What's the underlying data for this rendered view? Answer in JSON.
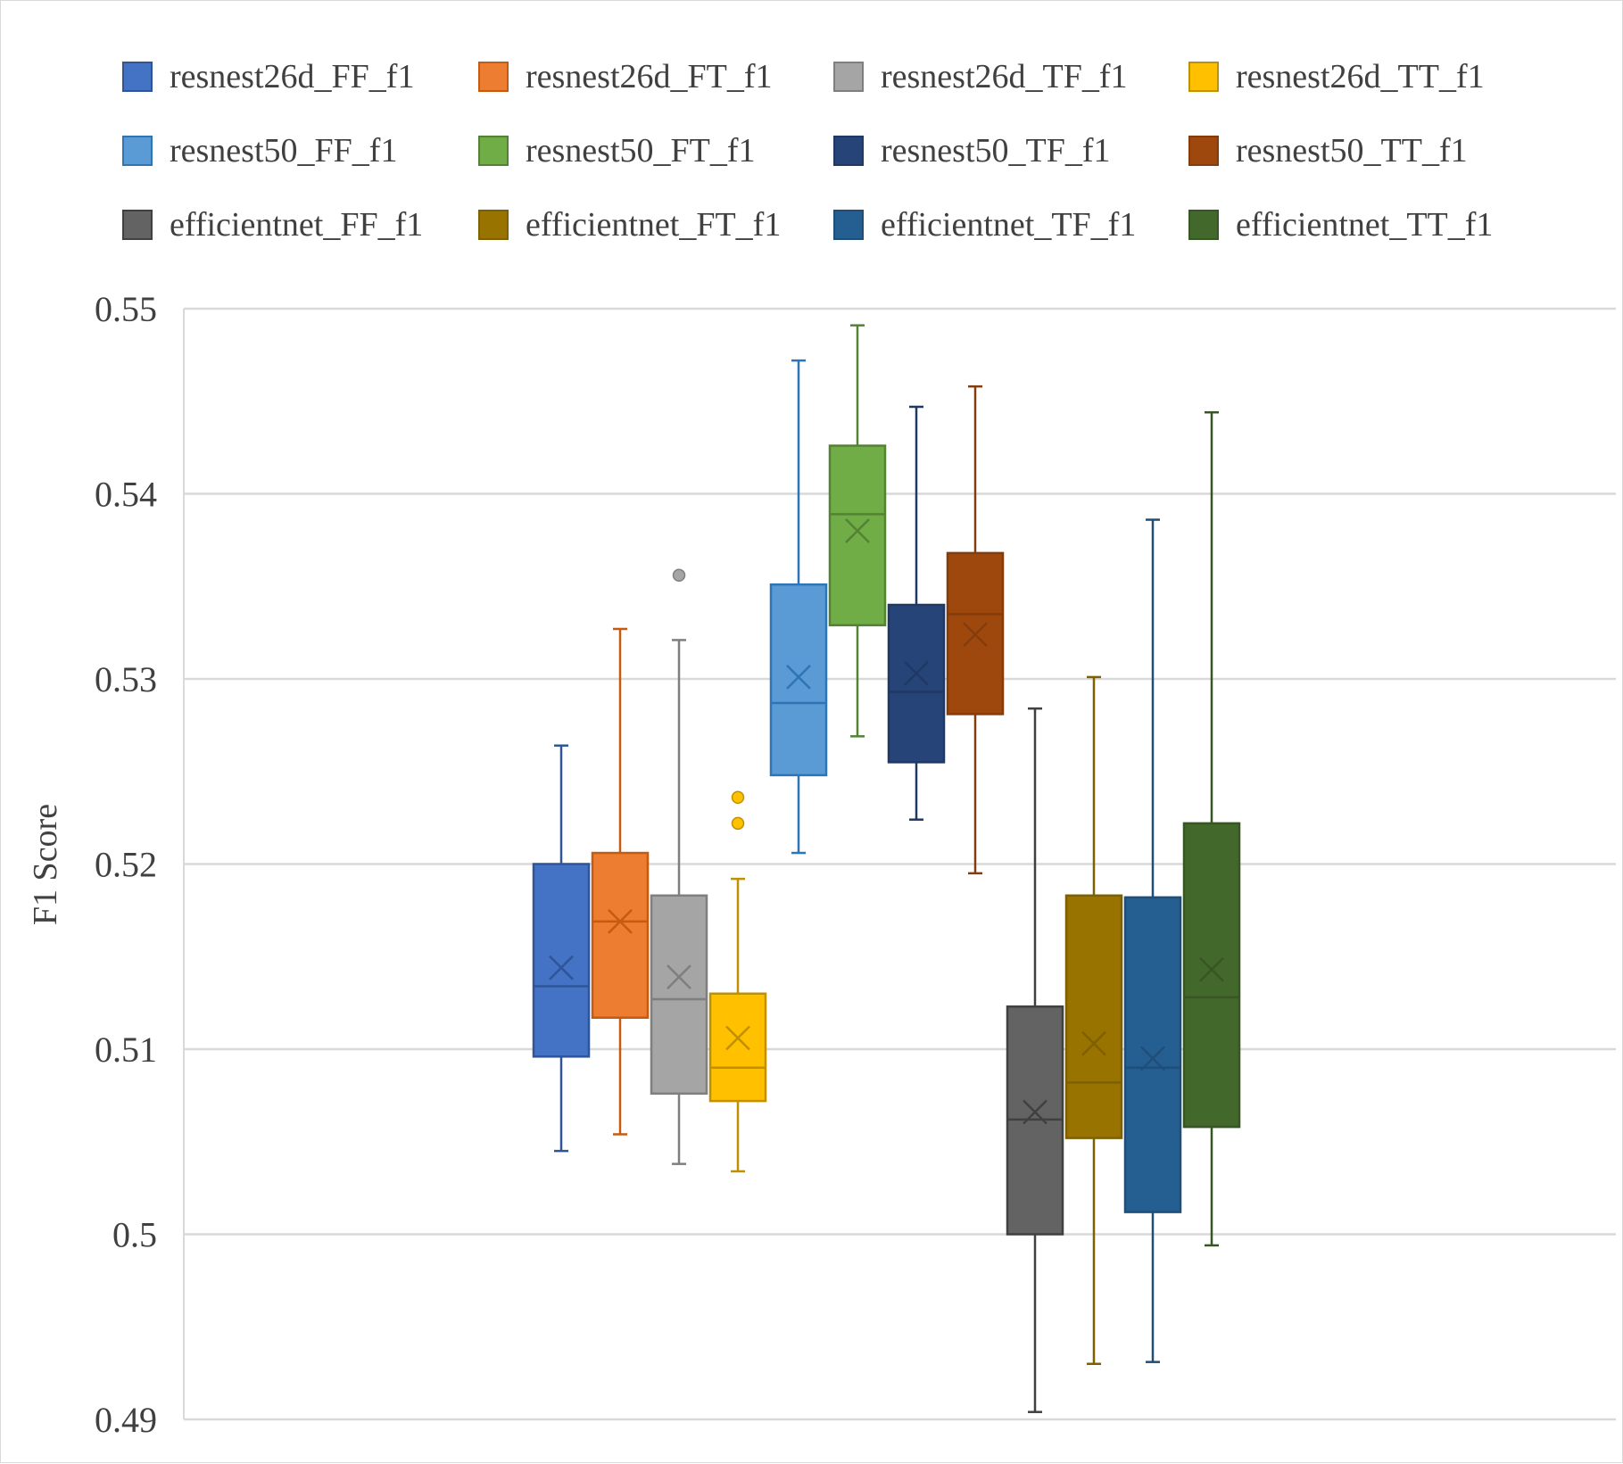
{
  "chart_data": {
    "type": "boxplot",
    "title": "",
    "xlabel": "",
    "ylabel": "F1 Score",
    "ylim": [
      0.49,
      0.55
    ],
    "yticks": [
      "0.49",
      "0.5",
      "0.51",
      "0.52",
      "0.53",
      "0.54",
      "0.55"
    ],
    "ytick_values": [
      0.49,
      0.5,
      0.51,
      0.52,
      0.53,
      0.54,
      0.55
    ],
    "grid": true,
    "legend_position": "top",
    "series": [
      {
        "name": "resnest26d_FF_f1",
        "color": "#4472C4",
        "stroke": "#2F5597",
        "min": 0.5045,
        "q1": 0.5096,
        "median": 0.5134,
        "mean": 0.5144,
        "q3": 0.52,
        "max": 0.5264,
        "outliers": []
      },
      {
        "name": "resnest26d_FT_f1",
        "color": "#ED7D31",
        "stroke": "#C55A11",
        "min": 0.5054,
        "q1": 0.5117,
        "median": 0.5169,
        "mean": 0.5169,
        "q3": 0.5206,
        "max": 0.5327,
        "outliers": []
      },
      {
        "name": "resnest26d_TF_f1",
        "color": "#A5A5A5",
        "stroke": "#7F7F7F",
        "min": 0.5038,
        "q1": 0.5076,
        "median": 0.5127,
        "mean": 0.5139,
        "q3": 0.5183,
        "max": 0.5321,
        "outliers": [
          0.5356
        ]
      },
      {
        "name": "resnest26d_TT_f1",
        "color": "#FFC000",
        "stroke": "#BF9000",
        "min": 0.5034,
        "q1": 0.5072,
        "median": 0.509,
        "mean": 0.5106,
        "q3": 0.513,
        "max": 0.5192,
        "outliers": [
          0.5222,
          0.5236
        ]
      },
      {
        "name": "resnest50_FF_f1",
        "color": "#5B9BD5",
        "stroke": "#2E75B6",
        "min": 0.5206,
        "q1": 0.5248,
        "median": 0.5287,
        "mean": 0.5301,
        "q3": 0.5351,
        "max": 0.5472,
        "outliers": []
      },
      {
        "name": "resnest50_FT_f1",
        "color": "#70AD47",
        "stroke": "#548235",
        "min": 0.5269,
        "q1": 0.5329,
        "median": 0.5389,
        "mean": 0.538,
        "q3": 0.5426,
        "max": 0.5491,
        "outliers": []
      },
      {
        "name": "resnest50_TF_f1",
        "color": "#264478",
        "stroke": "#1F3864",
        "min": 0.5224,
        "q1": 0.5255,
        "median": 0.5293,
        "mean": 0.5303,
        "q3": 0.534,
        "max": 0.5447,
        "outliers": []
      },
      {
        "name": "resnest50_TT_f1",
        "color": "#9E480E",
        "stroke": "#843C0C",
        "min": 0.5195,
        "q1": 0.5281,
        "median": 0.5335,
        "mean": 0.5324,
        "q3": 0.5368,
        "max": 0.5458,
        "outliers": []
      },
      {
        "name": "efficientnet_FF_f1",
        "color": "#636363",
        "stroke": "#404040",
        "min": 0.4904,
        "q1": 0.5,
        "median": 0.5062,
        "mean": 0.5066,
        "q3": 0.5123,
        "max": 0.5284,
        "outliers": []
      },
      {
        "name": "efficientnet_FT_f1",
        "color": "#997300",
        "stroke": "#7F6000",
        "min": 0.493,
        "q1": 0.5052,
        "median": 0.5082,
        "mean": 0.5103,
        "q3": 0.5183,
        "max": 0.5301,
        "outliers": []
      },
      {
        "name": "efficientnet_TF_f1",
        "color": "#255E91",
        "stroke": "#1F4E79",
        "min": 0.4931,
        "q1": 0.5012,
        "median": 0.509,
        "mean": 0.5095,
        "q3": 0.5182,
        "max": 0.5386,
        "outliers": []
      },
      {
        "name": "efficientnet_TT_f1",
        "color": "#43682B",
        "stroke": "#375623",
        "min": 0.4994,
        "q1": 0.5058,
        "median": 0.5128,
        "mean": 0.5143,
        "q3": 0.5222,
        "max": 0.5444,
        "outliers": []
      }
    ]
  }
}
